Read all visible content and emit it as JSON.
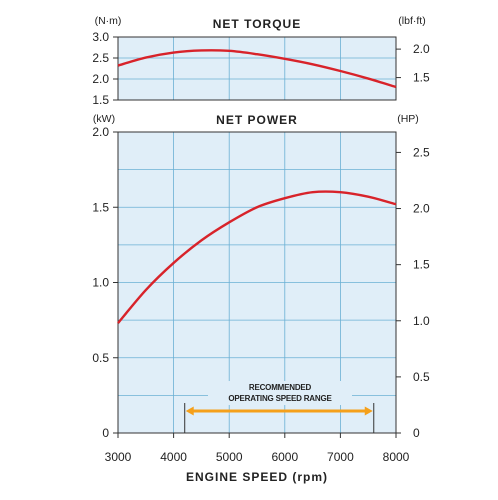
{
  "chart_data": [
    {
      "type": "line",
      "title": "NET TORQUE",
      "y_unit_left": "(N·m)",
      "y_unit_right": "(lbf·ft)",
      "xlim": [
        3000,
        8000
      ],
      "ylim_left": [
        1.5,
        3.0
      ],
      "ylim_right": [
        1.1063,
        2.2127
      ],
      "yticks_left": [
        "1.5",
        "2.0",
        "2.5",
        "3.0"
      ],
      "yticks_left_values": [
        1.5,
        2.0,
        2.5,
        3.0
      ],
      "yticks_right": [
        "1.5",
        "2.0"
      ],
      "yticks_right_values": [
        1.5,
        2.0
      ],
      "grid": true,
      "series": [
        {
          "color": "#d8232a",
          "x": [
            3000,
            3500,
            4000,
            4500,
            5000,
            5500,
            6000,
            6500,
            7000,
            7500,
            8000
          ],
          "y": [
            2.32,
            2.51,
            2.63,
            2.68,
            2.67,
            2.59,
            2.48,
            2.35,
            2.19,
            2.01,
            1.81
          ]
        }
      ]
    },
    {
      "type": "line",
      "title": "NET POWER",
      "y_unit_left": "(kW)",
      "y_unit_right": "(HP)",
      "xlim": [
        3000,
        8000
      ],
      "ylim_left": [
        0,
        2.0
      ],
      "ylim_right": [
        0,
        2.682
      ],
      "yticks_left": [
        "0",
        "0.5",
        "1.0",
        "1.5",
        "2.0"
      ],
      "yticks_left_values": [
        0,
        0.5,
        1.0,
        1.5,
        2.0
      ],
      "yticks_right": [
        "0",
        "0.5",
        "1.0",
        "1.5",
        "2.0",
        "2.5"
      ],
      "yticks_right_values": [
        0,
        0.5,
        1.0,
        1.5,
        2.0,
        2.5
      ],
      "xticks": [
        "3000",
        "4000",
        "5000",
        "6000",
        "7000",
        "8000"
      ],
      "xticks_values": [
        3000,
        4000,
        5000,
        6000,
        7000,
        8000
      ],
      "xlabel": "ENGINE SPEED (rpm)",
      "grid": true,
      "series": [
        {
          "color": "#d8232a",
          "x": [
            3000,
            3500,
            4000,
            4500,
            5000,
            5500,
            6000,
            6500,
            7000,
            7500,
            8000
          ],
          "y": [
            0.73,
            0.95,
            1.13,
            1.28,
            1.4,
            1.5,
            1.56,
            1.6,
            1.6,
            1.57,
            1.52
          ]
        }
      ],
      "annotation": {
        "lines": [
          "RECOMMENDED",
          "OPERATING SPEED RANGE"
        ],
        "range": [
          4200,
          7600
        ],
        "color": "#f5a01a"
      }
    }
  ],
  "colors": {
    "plot_bg": "#e0eef8",
    "grid": "#6ab0d4",
    "frame": "#333333",
    "curve": "#d8232a",
    "range_arrow": "#f5a01a"
  }
}
